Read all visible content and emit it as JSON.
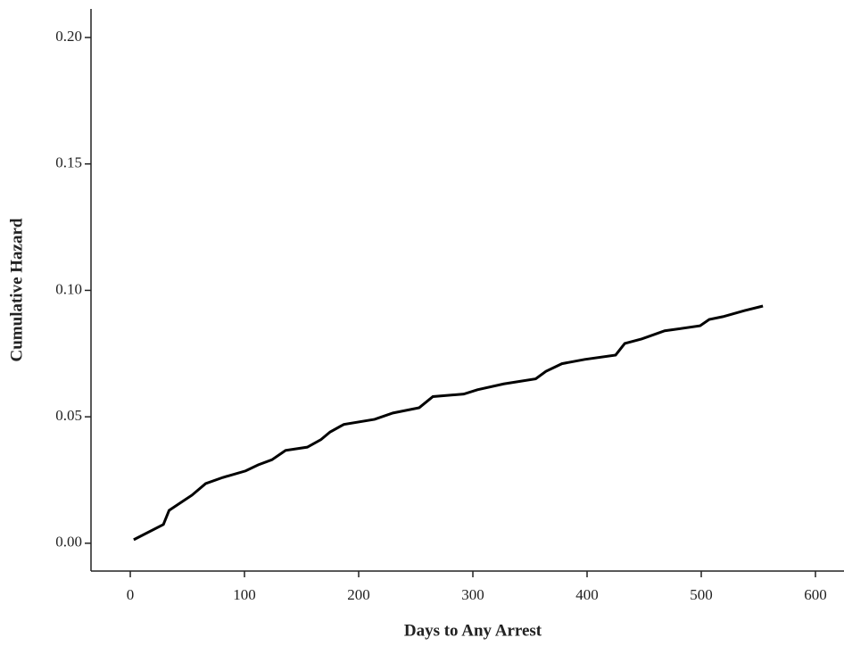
{
  "chart_data": {
    "type": "line",
    "x_label": "Days to Any Arrest",
    "y_label": "Cumulative Hazard",
    "x": [
      3,
      29,
      34,
      46,
      54,
      66,
      81,
      101,
      112,
      124,
      136,
      155,
      167,
      175,
      187,
      214,
      230,
      253,
      265,
      292,
      304,
      327,
      355,
      364,
      378,
      398,
      425,
      433,
      448,
      468,
      499,
      507,
      519,
      538,
      554
    ],
    "series": [
      {
        "color": "#000000",
        "values": [
          0.0014,
          0.0074,
          0.013,
          0.0166,
          0.019,
          0.0236,
          0.026,
          0.0286,
          0.031,
          0.033,
          0.0367,
          0.038,
          0.041,
          0.044,
          0.047,
          0.049,
          0.0515,
          0.0536,
          0.058,
          0.059,
          0.0607,
          0.063,
          0.065,
          0.068,
          0.071,
          0.0727,
          0.0744,
          0.079,
          0.0808,
          0.084,
          0.086,
          0.0885,
          0.0896,
          0.092,
          0.0938
        ]
      }
    ],
    "xlim": [
      -34.4,
      625
    ],
    "xticks": [
      0,
      100,
      200,
      300,
      400,
      500,
      600
    ],
    "ylim": [
      -0.011,
      0.2113
    ],
    "yticks": [
      {
        "value": 0,
        "label": "0.00"
      },
      {
        "value": 0.05,
        "label": "0.05"
      },
      {
        "value": 0.1,
        "label": "0.10"
      },
      {
        "value": 0.15,
        "label": "0.15"
      },
      {
        "value": 0.2,
        "label": "0.20"
      }
    ]
  }
}
